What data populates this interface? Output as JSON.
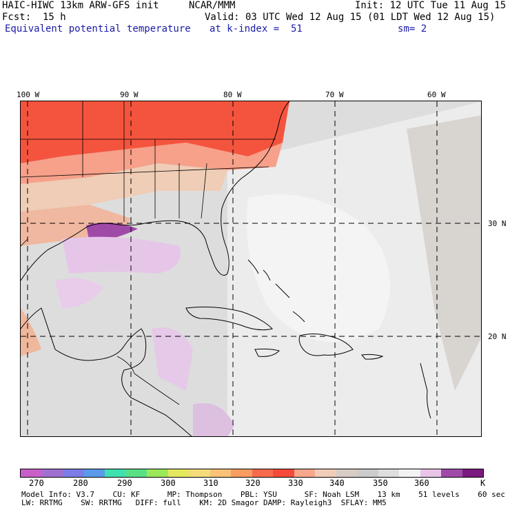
{
  "header": {
    "model": "HAIC-HIWC 13km ARW-GFS init",
    "ncar": "NCAR/MMM",
    "init": "Init: 12 UTC Tue 11 Aug 15",
    "fcst": "Fcst:  15 h",
    "valid": "Valid: 03 UTC Wed 12 Aug 15 (01 LDT Wed 12 Aug 15)",
    "field": "Equivalent potential temperature",
    "level": "at k-index =  51",
    "smooth": "sm= 2"
  },
  "map": {
    "lon_labels": [
      "100 W",
      "90 W",
      "80 W",
      "70 W",
      "60 W"
    ],
    "lat_labels": [
      "30 N",
      "20 N"
    ]
  },
  "colorbar": {
    "unit": "K",
    "labels": [
      "270",
      "280",
      "290",
      "300",
      "310",
      "320",
      "330",
      "340",
      "350",
      "360"
    ],
    "colors": [
      "#c95fc9",
      "#a070d0",
      "#7d7de8",
      "#5a9ae8",
      "#3fe0b0",
      "#59e085",
      "#9be85a",
      "#e3e85e",
      "#f5dc7a",
      "#f9c278",
      "#f89c62",
      "#f86a4c",
      "#f54a38",
      "#f7a88c",
      "#f0cdb8",
      "#d8ccc6",
      "#cccccc",
      "#dedede",
      "#f3f3f3",
      "#e8c4e8",
      "#a04aa8",
      "#7a1a80"
    ]
  },
  "footer": {
    "line1": "Model Info: V3.7    CU: KF      MP: Thompson    PBL: YSU      SF: Noah LSM    13 km    51 levels    60 sec",
    "line2": "LW: RRTMG    SW: RRTMG   DIFF: full    KM: 2D Smagor DAMP: Rayleigh3  SFLAY: MM5"
  }
}
